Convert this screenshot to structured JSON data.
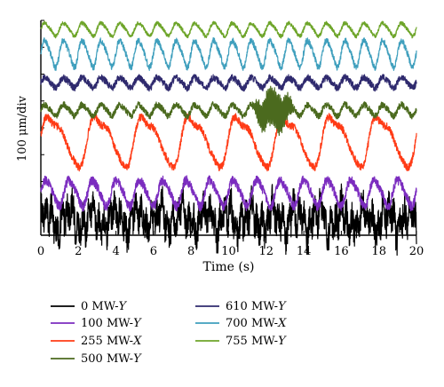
{
  "chart_data": {
    "type": "line",
    "title": "",
    "xlabel": "Time (s)",
    "ylabel": "100 μm/div",
    "xlim": [
      0,
      20
    ],
    "x_ticks": [
      "0",
      "2",
      "4",
      "6",
      "8",
      "10",
      "12",
      "14",
      "16",
      "18",
      "20"
    ],
    "grid": false,
    "legend_placement": "bottom",
    "series": [
      {
        "name": "0 MW-Y",
        "color": "#000000",
        "baseline": 0,
        "amplitude": 1.0,
        "noise": 0.9,
        "waveform": "broadband-noise",
        "periods_over_20s": 0
      },
      {
        "name": "100 MW-Y",
        "color": "#7b2cbf",
        "baseline": 1,
        "amplitude": 1.0,
        "noise": 0.35,
        "waveform": "periodic",
        "periods_over_20s": 16
      },
      {
        "name": "255 MW-X",
        "color": "#ff3b16",
        "baseline": 2,
        "amplitude": 2.0,
        "noise": 0.3,
        "waveform": "periodic-large",
        "periods_over_20s": 8
      },
      {
        "name": "500 MW-Y",
        "color": "#4b6a1e",
        "baseline": 3,
        "amplitude": 0.55,
        "noise": 0.3,
        "waveform": "periodic-with-burst",
        "periods_over_20s": 20,
        "burst_time_s": [
          11.2,
          13.6
        ]
      },
      {
        "name": "610 MW-Y",
        "color": "#2f2a6e",
        "baseline": 4,
        "amplitude": 0.55,
        "noise": 0.35,
        "waveform": "periodic",
        "periods_over_20s": 20
      },
      {
        "name": "700 MW-X",
        "color": "#3f9fbd",
        "baseline": 5,
        "amplitude": 0.9,
        "noise": 0.2,
        "waveform": "periodic",
        "periods_over_20s": 20
      },
      {
        "name": "755 MW-Y",
        "color": "#6ea52a",
        "baseline": 6,
        "amplitude": 0.7,
        "noise": 0.2,
        "waveform": "periodic",
        "periods_over_20s": 20
      }
    ],
    "legend": [
      {
        "prefix": "0 MW-",
        "suffix": "Y",
        "color": "#000000"
      },
      {
        "prefix": "610 MW-",
        "suffix": "Y",
        "color": "#2f2a6e"
      },
      {
        "prefix": "100 MW-",
        "suffix": "Y",
        "color": "#7b2cbf"
      },
      {
        "prefix": "700 MW-",
        "suffix": "X",
        "color": "#3f9fbd"
      },
      {
        "prefix": "255 MW-",
        "suffix": "X",
        "color": "#ff3b16"
      },
      {
        "prefix": "755 MW-",
        "suffix": "Y",
        "color": "#6ea52a"
      },
      {
        "prefix": "500 MW-",
        "suffix": "Y",
        "color": "#4b6a1e"
      }
    ]
  }
}
